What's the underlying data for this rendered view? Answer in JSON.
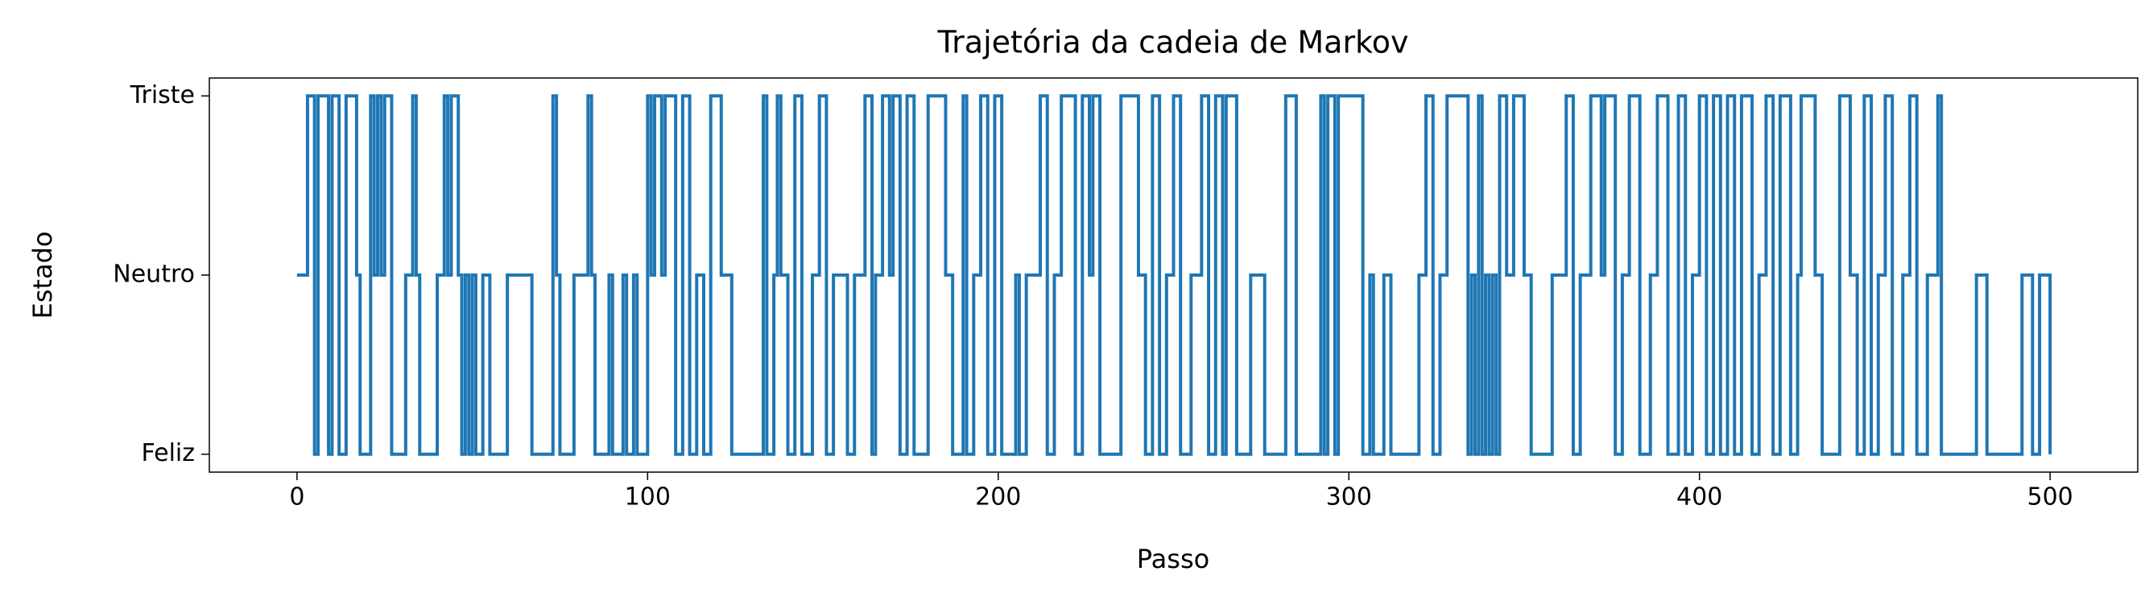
{
  "chart_data": {
    "type": "step",
    "title": "Trajetória da cadeia de Markov",
    "x_label": "Passo",
    "y_label": "Estado",
    "xlim": [
      -25,
      525
    ],
    "ylim": [
      -0.1,
      2.1
    ],
    "xticks": [
      0,
      100,
      200,
      300,
      400,
      500
    ],
    "yticks": [
      {
        "value": 0,
        "label": "Feliz"
      },
      {
        "value": 1,
        "label": "Neutro"
      },
      {
        "value": 2,
        "label": "Triste"
      }
    ],
    "series": [
      {
        "color": "#1f77b4",
        "x": [
          0,
          3,
          5,
          6,
          9,
          10,
          12,
          14,
          17,
          18,
          21,
          22,
          23,
          24,
          25,
          27,
          31,
          33,
          34,
          35,
          40,
          42,
          43,
          44,
          46,
          47,
          48,
          49,
          50,
          51,
          53,
          55,
          60,
          67,
          73,
          74,
          75,
          79,
          83,
          84,
          85,
          89,
          90,
          93,
          94,
          96,
          97,
          100,
          101,
          102,
          104,
          105,
          108,
          110,
          112,
          114,
          116,
          118,
          121,
          124,
          133,
          134,
          136,
          137,
          138,
          140,
          142,
          144,
          147,
          149,
          151,
          153,
          157,
          159,
          162,
          164,
          165,
          167,
          169,
          170,
          172,
          174,
          176,
          180,
          185,
          187,
          190,
          191,
          193,
          195,
          197,
          199,
          201,
          205,
          206,
          208,
          212,
          214,
          216,
          218,
          222,
          224,
          226,
          227,
          229,
          235,
          240,
          242,
          244,
          246,
          248,
          250,
          252,
          255,
          258,
          260,
          262,
          264,
          265,
          268,
          272,
          276,
          282,
          285,
          292,
          293,
          294,
          296,
          297,
          304,
          306,
          307,
          310,
          312,
          320,
          322,
          324,
          326,
          328,
          334,
          335,
          336,
          337,
          338,
          339,
          340,
          341,
          342,
          343,
          345,
          347,
          350,
          352,
          358,
          362,
          364,
          366,
          369,
          372,
          373,
          376,
          378,
          380,
          383,
          386,
          388,
          391,
          394,
          396,
          398,
          400,
          402,
          404,
          406,
          408,
          410,
          412,
          415,
          417,
          419,
          421,
          423,
          426,
          428,
          429,
          433,
          435,
          440,
          443,
          445,
          447,
          449,
          451,
          453,
          455,
          458,
          460,
          462,
          465,
          468,
          469,
          479,
          482,
          492,
          495,
          497,
          500
        ],
        "values": [
          1,
          2,
          0,
          2,
          0,
          2,
          0,
          2,
          1,
          0,
          2,
          1,
          2,
          1,
          2,
          0,
          1,
          2,
          1,
          0,
          1,
          2,
          1,
          2,
          1,
          0,
          1,
          0,
          1,
          0,
          1,
          0,
          1,
          0,
          2,
          1,
          0,
          1,
          2,
          1,
          0,
          1,
          0,
          1,
          0,
          1,
          0,
          2,
          1,
          2,
          1,
          2,
          0,
          2,
          0,
          1,
          0,
          2,
          1,
          0,
          2,
          0,
          1,
          2,
          1,
          0,
          2,
          0,
          1,
          2,
          0,
          1,
          0,
          1,
          2,
          0,
          1,
          2,
          1,
          2,
          0,
          2,
          0,
          2,
          1,
          0,
          2,
          0,
          1,
          2,
          0,
          2,
          0,
          1,
          0,
          1,
          2,
          0,
          1,
          2,
          0,
          2,
          1,
          2,
          0,
          2,
          1,
          0,
          2,
          0,
          1,
          2,
          0,
          1,
          2,
          0,
          2,
          0,
          2,
          0,
          1,
          0,
          2,
          0,
          2,
          0,
          2,
          0,
          2,
          0,
          1,
          0,
          1,
          0,
          1,
          2,
          0,
          1,
          2,
          0,
          1,
          0,
          2,
          0,
          1,
          0,
          1,
          0,
          2,
          1,
          2,
          1,
          0,
          1,
          2,
          0,
          1,
          2,
          1,
          2,
          0,
          1,
          2,
          0,
          1,
          2,
          0,
          2,
          0,
          1,
          2,
          0,
          2,
          0,
          2,
          0,
          2,
          0,
          1,
          2,
          0,
          2,
          0,
          1,
          2,
          1,
          0,
          2,
          1,
          0,
          2,
          0,
          1,
          2,
          0,
          1,
          2,
          0,
          1,
          2,
          0,
          1,
          0,
          1,
          0,
          1,
          0
        ]
      }
    ]
  }
}
